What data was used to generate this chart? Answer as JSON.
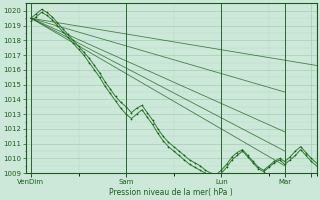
{
  "xlabel": "Pression niveau de la mer( hPa )",
  "ylim": [
    1009,
    1020.5
  ],
  "xlim": [
    0,
    110
  ],
  "yticks": [
    1009,
    1010,
    1011,
    1012,
    1013,
    1014,
    1015,
    1016,
    1017,
    1018,
    1019,
    1020
  ],
  "xtick_positions": [
    2,
    38,
    74,
    98,
    108
  ],
  "xtick_labels": [
    "VenDim",
    "Sam",
    "Lun",
    "Mar",
    ""
  ],
  "bg_color": "#cce8d8",
  "grid_color_major": "#a8ccb8",
  "grid_color_minor": "#b8d8c8",
  "line_dark": "#1a5c1a",
  "line_mid": "#2e7d2e",
  "line_bright": "#3a9a3a",
  "straight_lines": [
    {
      "x0": 2,
      "y0": 1019.5,
      "x1": 110,
      "y1": 1016.3
    },
    {
      "x0": 2,
      "y0": 1019.5,
      "x1": 98,
      "y1": 1014.5
    },
    {
      "x0": 2,
      "y0": 1019.5,
      "x1": 98,
      "y1": 1011.8
    },
    {
      "x0": 2,
      "y0": 1019.5,
      "x1": 98,
      "y1": 1010.5
    },
    {
      "x0": 2,
      "y0": 1019.5,
      "x1": 98,
      "y1": 1009.5
    }
  ],
  "wiggly1_x": [
    2,
    4,
    6,
    8,
    10,
    12,
    14,
    16,
    18,
    20,
    22,
    24,
    26,
    28,
    30,
    32,
    34,
    36,
    38,
    40,
    42,
    44,
    46,
    48,
    50,
    52,
    54,
    56,
    58,
    60,
    62,
    64,
    66,
    68,
    70,
    72,
    74,
    76,
    78,
    80,
    82,
    84,
    86,
    88,
    90,
    92,
    94,
    96,
    98,
    100,
    102,
    104,
    106,
    108,
    110
  ],
  "wiggly1_y": [
    1019.5,
    1019.8,
    1020.1,
    1019.9,
    1019.6,
    1019.2,
    1018.8,
    1018.4,
    1018.0,
    1017.6,
    1017.2,
    1016.8,
    1016.3,
    1015.8,
    1015.2,
    1014.7,
    1014.2,
    1013.8,
    1013.5,
    1013.1,
    1013.4,
    1013.6,
    1013.1,
    1012.6,
    1012.0,
    1011.5,
    1011.1,
    1010.8,
    1010.5,
    1010.2,
    1009.9,
    1009.7,
    1009.5,
    1009.2,
    1009.0,
    1008.9,
    1009.2,
    1009.6,
    1010.1,
    1010.4,
    1010.6,
    1010.2,
    1009.8,
    1009.4,
    1009.2,
    1009.5,
    1009.8,
    1010.0,
    1009.8,
    1010.1,
    1010.5,
    1010.8,
    1010.4,
    1010.0,
    1009.7
  ],
  "wiggly2_x": [
    2,
    4,
    6,
    8,
    10,
    12,
    14,
    16,
    18,
    20,
    22,
    24,
    26,
    28,
    30,
    32,
    34,
    36,
    38,
    40,
    42,
    44,
    46,
    48,
    50,
    52,
    54,
    56,
    58,
    60,
    62,
    64,
    66,
    68,
    70,
    72,
    74,
    76,
    78,
    80,
    82,
    84,
    86,
    88,
    90,
    92,
    94,
    96,
    98,
    100,
    102,
    104,
    106,
    108,
    110
  ],
  "wiggly2_y": [
    1019.3,
    1019.6,
    1019.9,
    1019.7,
    1019.4,
    1019.0,
    1018.6,
    1018.2,
    1017.8,
    1017.4,
    1017.0,
    1016.5,
    1016.0,
    1015.5,
    1014.9,
    1014.4,
    1013.9,
    1013.4,
    1013.0,
    1012.7,
    1013.0,
    1013.3,
    1012.8,
    1012.3,
    1011.7,
    1011.2,
    1010.8,
    1010.5,
    1010.2,
    1009.9,
    1009.6,
    1009.4,
    1009.2,
    1009.0,
    1008.8,
    1008.7,
    1009.0,
    1009.4,
    1009.9,
    1010.2,
    1010.5,
    1010.1,
    1009.7,
    1009.3,
    1009.1,
    1009.4,
    1009.7,
    1009.9,
    1009.6,
    1009.9,
    1010.2,
    1010.6,
    1010.2,
    1009.8,
    1009.5
  ]
}
